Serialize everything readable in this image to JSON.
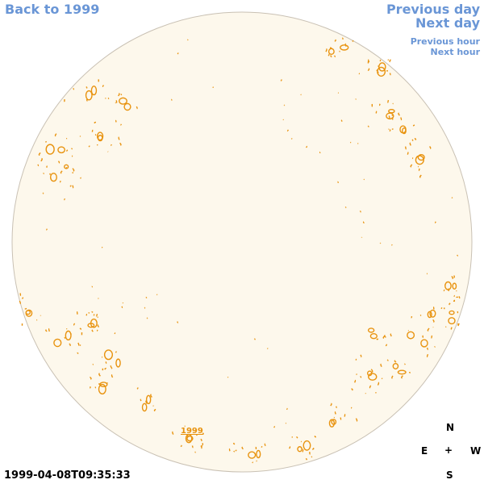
{
  "nav": {
    "back": "Back to 1999",
    "previous_day": "Previous day",
    "next_day": "Next day",
    "previous_hour": "Previous hour",
    "next_hour": "Next hour"
  },
  "disk": {
    "fill_color": "#fdf8ec",
    "border_color": "#c9c1b4",
    "contour_color": "#e8930f",
    "year_label": "1999"
  },
  "compass": {
    "north": "N",
    "east": "E",
    "center": "+",
    "west": "W",
    "south": "S"
  },
  "timestamp": "1999-04-08T09:35:33",
  "colors": {
    "link": "#6a96d6",
    "accent": "#e8930f"
  }
}
